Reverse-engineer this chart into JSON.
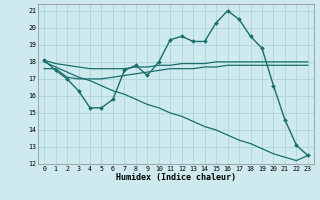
{
  "xlabel": "Humidex (Indice chaleur)",
  "ylabel": "",
  "bg_color": "#ceeaee",
  "grid_color": "#b0d8de",
  "line_color": "#1a6e6a",
  "xlim": [
    -0.5,
    23.5
  ],
  "ylim": [
    12,
    21.4
  ],
  "yticks": [
    12,
    13,
    14,
    15,
    16,
    17,
    18,
    19,
    20,
    21
  ],
  "xticks": [
    0,
    1,
    2,
    3,
    4,
    5,
    6,
    7,
    8,
    9,
    10,
    11,
    12,
    13,
    14,
    15,
    16,
    17,
    18,
    19,
    20,
    21,
    22,
    23
  ],
  "series": [
    {
      "x": [
        0,
        1,
        2,
        3,
        4,
        5,
        6,
        7,
        8,
        9,
        10,
        11,
        12,
        13,
        14,
        15,
        16,
        17,
        18,
        19,
        20,
        21,
        22,
        23
      ],
      "y": [
        18.1,
        17.5,
        17.0,
        16.3,
        15.3,
        15.3,
        15.8,
        17.5,
        17.8,
        17.2,
        18.0,
        19.3,
        19.5,
        19.2,
        19.2,
        20.3,
        21.0,
        20.5,
        19.5,
        18.8,
        16.6,
        14.6,
        13.1,
        12.5
      ],
      "marker": "D",
      "markersize": 2.0,
      "linewidth": 1.0
    },
    {
      "x": [
        0,
        1,
        2,
        3,
        4,
        5,
        6,
        7,
        8,
        9,
        10,
        11,
        12,
        13,
        14,
        15,
        16,
        17,
        18,
        19,
        20,
        21,
        22,
        23
      ],
      "y": [
        17.6,
        17.6,
        17.1,
        17.0,
        17.0,
        17.0,
        17.1,
        17.2,
        17.3,
        17.4,
        17.5,
        17.6,
        17.6,
        17.6,
        17.7,
        17.7,
        17.8,
        17.8,
        17.8,
        17.8,
        17.8,
        17.8,
        17.8,
        17.8
      ],
      "marker": null,
      "markersize": 0,
      "linewidth": 0.9
    },
    {
      "x": [
        0,
        1,
        2,
        3,
        4,
        5,
        6,
        7,
        8,
        9,
        10,
        11,
        12,
        13,
        14,
        15,
        16,
        17,
        18,
        19,
        20,
        21,
        22,
        23
      ],
      "y": [
        18.1,
        17.9,
        17.8,
        17.7,
        17.6,
        17.6,
        17.6,
        17.6,
        17.7,
        17.7,
        17.8,
        17.8,
        17.9,
        17.9,
        17.9,
        18.0,
        18.0,
        18.0,
        18.0,
        18.0,
        18.0,
        18.0,
        18.0,
        18.0
      ],
      "marker": null,
      "markersize": 0,
      "linewidth": 0.9
    },
    {
      "x": [
        0,
        1,
        2,
        3,
        4,
        5,
        6,
        7,
        8,
        9,
        10,
        11,
        12,
        13,
        14,
        15,
        16,
        17,
        18,
        19,
        20,
        21,
        22,
        23
      ],
      "y": [
        18.0,
        17.7,
        17.4,
        17.1,
        16.9,
        16.6,
        16.3,
        16.1,
        15.8,
        15.5,
        15.3,
        15.0,
        14.8,
        14.5,
        14.2,
        14.0,
        13.7,
        13.4,
        13.2,
        12.9,
        12.6,
        12.4,
        12.2,
        12.5
      ],
      "marker": null,
      "markersize": 0,
      "linewidth": 0.9
    }
  ]
}
